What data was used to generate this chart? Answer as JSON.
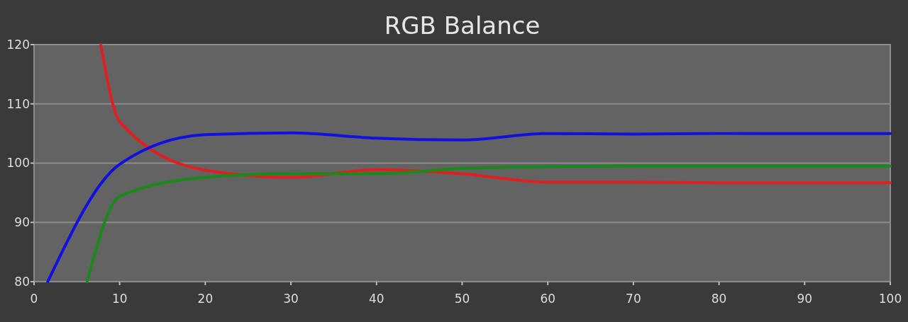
{
  "chart_data": {
    "type": "line",
    "title": "RGB Balance",
    "xlim": [
      0,
      100
    ],
    "xticks": [
      0,
      10,
      20,
      30,
      40,
      50,
      60,
      70,
      80,
      90,
      100
    ],
    "ylim": [
      80,
      120
    ],
    "yticks": [
      80,
      90,
      100,
      110,
      120
    ],
    "grid": "y",
    "line_style": "solid",
    "marker": "none",
    "series": [
      {
        "color": "#e02020",
        "x": [
          7.8,
          10,
          20,
          30,
          40,
          50,
          60,
          70,
          80,
          90,
          100
        ],
        "values": [
          120,
          107,
          98.8,
          97.6,
          98.9,
          98.2,
          96.8,
          96.8,
          96.7,
          96.7,
          96.7
        ]
      },
      {
        "color": "#1a8a1a",
        "x": [
          6.2,
          10,
          20,
          30,
          40,
          50,
          60,
          70,
          80,
          90,
          100
        ],
        "values": [
          80,
          94.4,
          97.6,
          98.2,
          98.2,
          99.1,
          99.4,
          99.5,
          99.5,
          99.5,
          99.5
        ]
      },
      {
        "color": "#1010e0",
        "x": [
          1.6,
          10,
          20,
          30,
          40,
          50,
          60,
          70,
          80,
          90,
          100
        ],
        "values": [
          80,
          99.8,
          104.8,
          105.1,
          104.2,
          103.9,
          105,
          104.9,
          105,
          105,
          105
        ]
      }
    ]
  }
}
